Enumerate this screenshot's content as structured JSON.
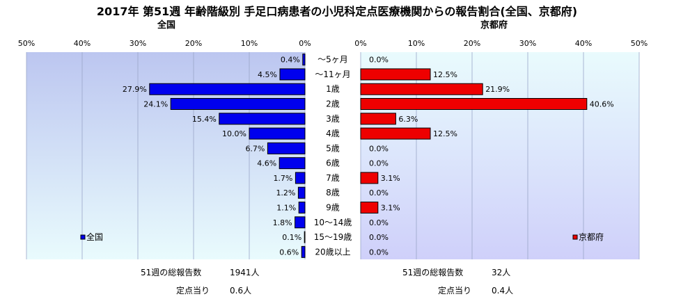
{
  "title": "2017年 第51週 年齢階級別 手足口病患者の小児科定点医療機関からの報告割合(全国、京都府)",
  "age_groups": [
    "～5ヶ月",
    "～11ヶ月",
    "1歳",
    "2歳",
    "3歳",
    "4歳",
    "5歳",
    "6歳",
    "7歳",
    "8歳",
    "9歳",
    "10～14歳",
    "15～19歳",
    "20歳以上"
  ],
  "chart_data": [
    {
      "type": "bar",
      "title": "全国",
      "orientation": "horizontal-reversed",
      "categories": [
        "～5ヶ月",
        "～11ヶ月",
        "1歳",
        "2歳",
        "3歳",
        "4歳",
        "5歳",
        "6歳",
        "7歳",
        "8歳",
        "9歳",
        "10～14歳",
        "15～19歳",
        "20歳以上"
      ],
      "series": [
        {
          "name": "全国",
          "values": [
            0.4,
            4.5,
            27.9,
            24.1,
            15.4,
            10.0,
            6.7,
            4.6,
            1.7,
            1.2,
            1.1,
            1.8,
            0.1,
            0.6
          ]
        }
      ],
      "ticks": [
        "50%",
        "40%",
        "30%",
        "20%",
        "10%",
        "0%"
      ],
      "xlim": [
        0,
        50
      ],
      "grid": true,
      "legend_position": "bottom-left",
      "colors": {
        "bar": "#0000ee",
        "plot_bg_top": "#bcc6f0",
        "plot_bg_bottom": "#e9fbfd",
        "grid": "#9aa6c8"
      }
    },
    {
      "type": "bar",
      "title": "京都府",
      "orientation": "horizontal",
      "categories": [
        "～5ヶ月",
        "～11ヶ月",
        "1歳",
        "2歳",
        "3歳",
        "4歳",
        "5歳",
        "6歳",
        "7歳",
        "8歳",
        "9歳",
        "10～14歳",
        "15～19歳",
        "20歳以上"
      ],
      "series": [
        {
          "name": "京都府",
          "values": [
            0.0,
            12.5,
            21.9,
            40.6,
            6.3,
            12.5,
            0.0,
            0.0,
            3.1,
            0.0,
            3.1,
            0.0,
            0.0,
            0.0
          ]
        }
      ],
      "ticks": [
        "0%",
        "10%",
        "20%",
        "30%",
        "40%",
        "50%"
      ],
      "xlim": [
        0,
        50
      ],
      "grid": true,
      "legend_position": "bottom-right",
      "colors": {
        "bar": "#ee0000",
        "plot_bg_top": "#e9fbfd",
        "plot_bg_bottom": "#cfd0fa",
        "grid": "#9aa6c8"
      }
    }
  ],
  "footer": {
    "national": {
      "total_label": "51週の総報告数",
      "total_value": "1941人",
      "per_label": "定点当り",
      "per_value": "0.6人"
    },
    "kyoto": {
      "total_label": "51週の総報告数",
      "total_value": "32人",
      "per_label": "定点当り",
      "per_value": "0.4人"
    }
  }
}
